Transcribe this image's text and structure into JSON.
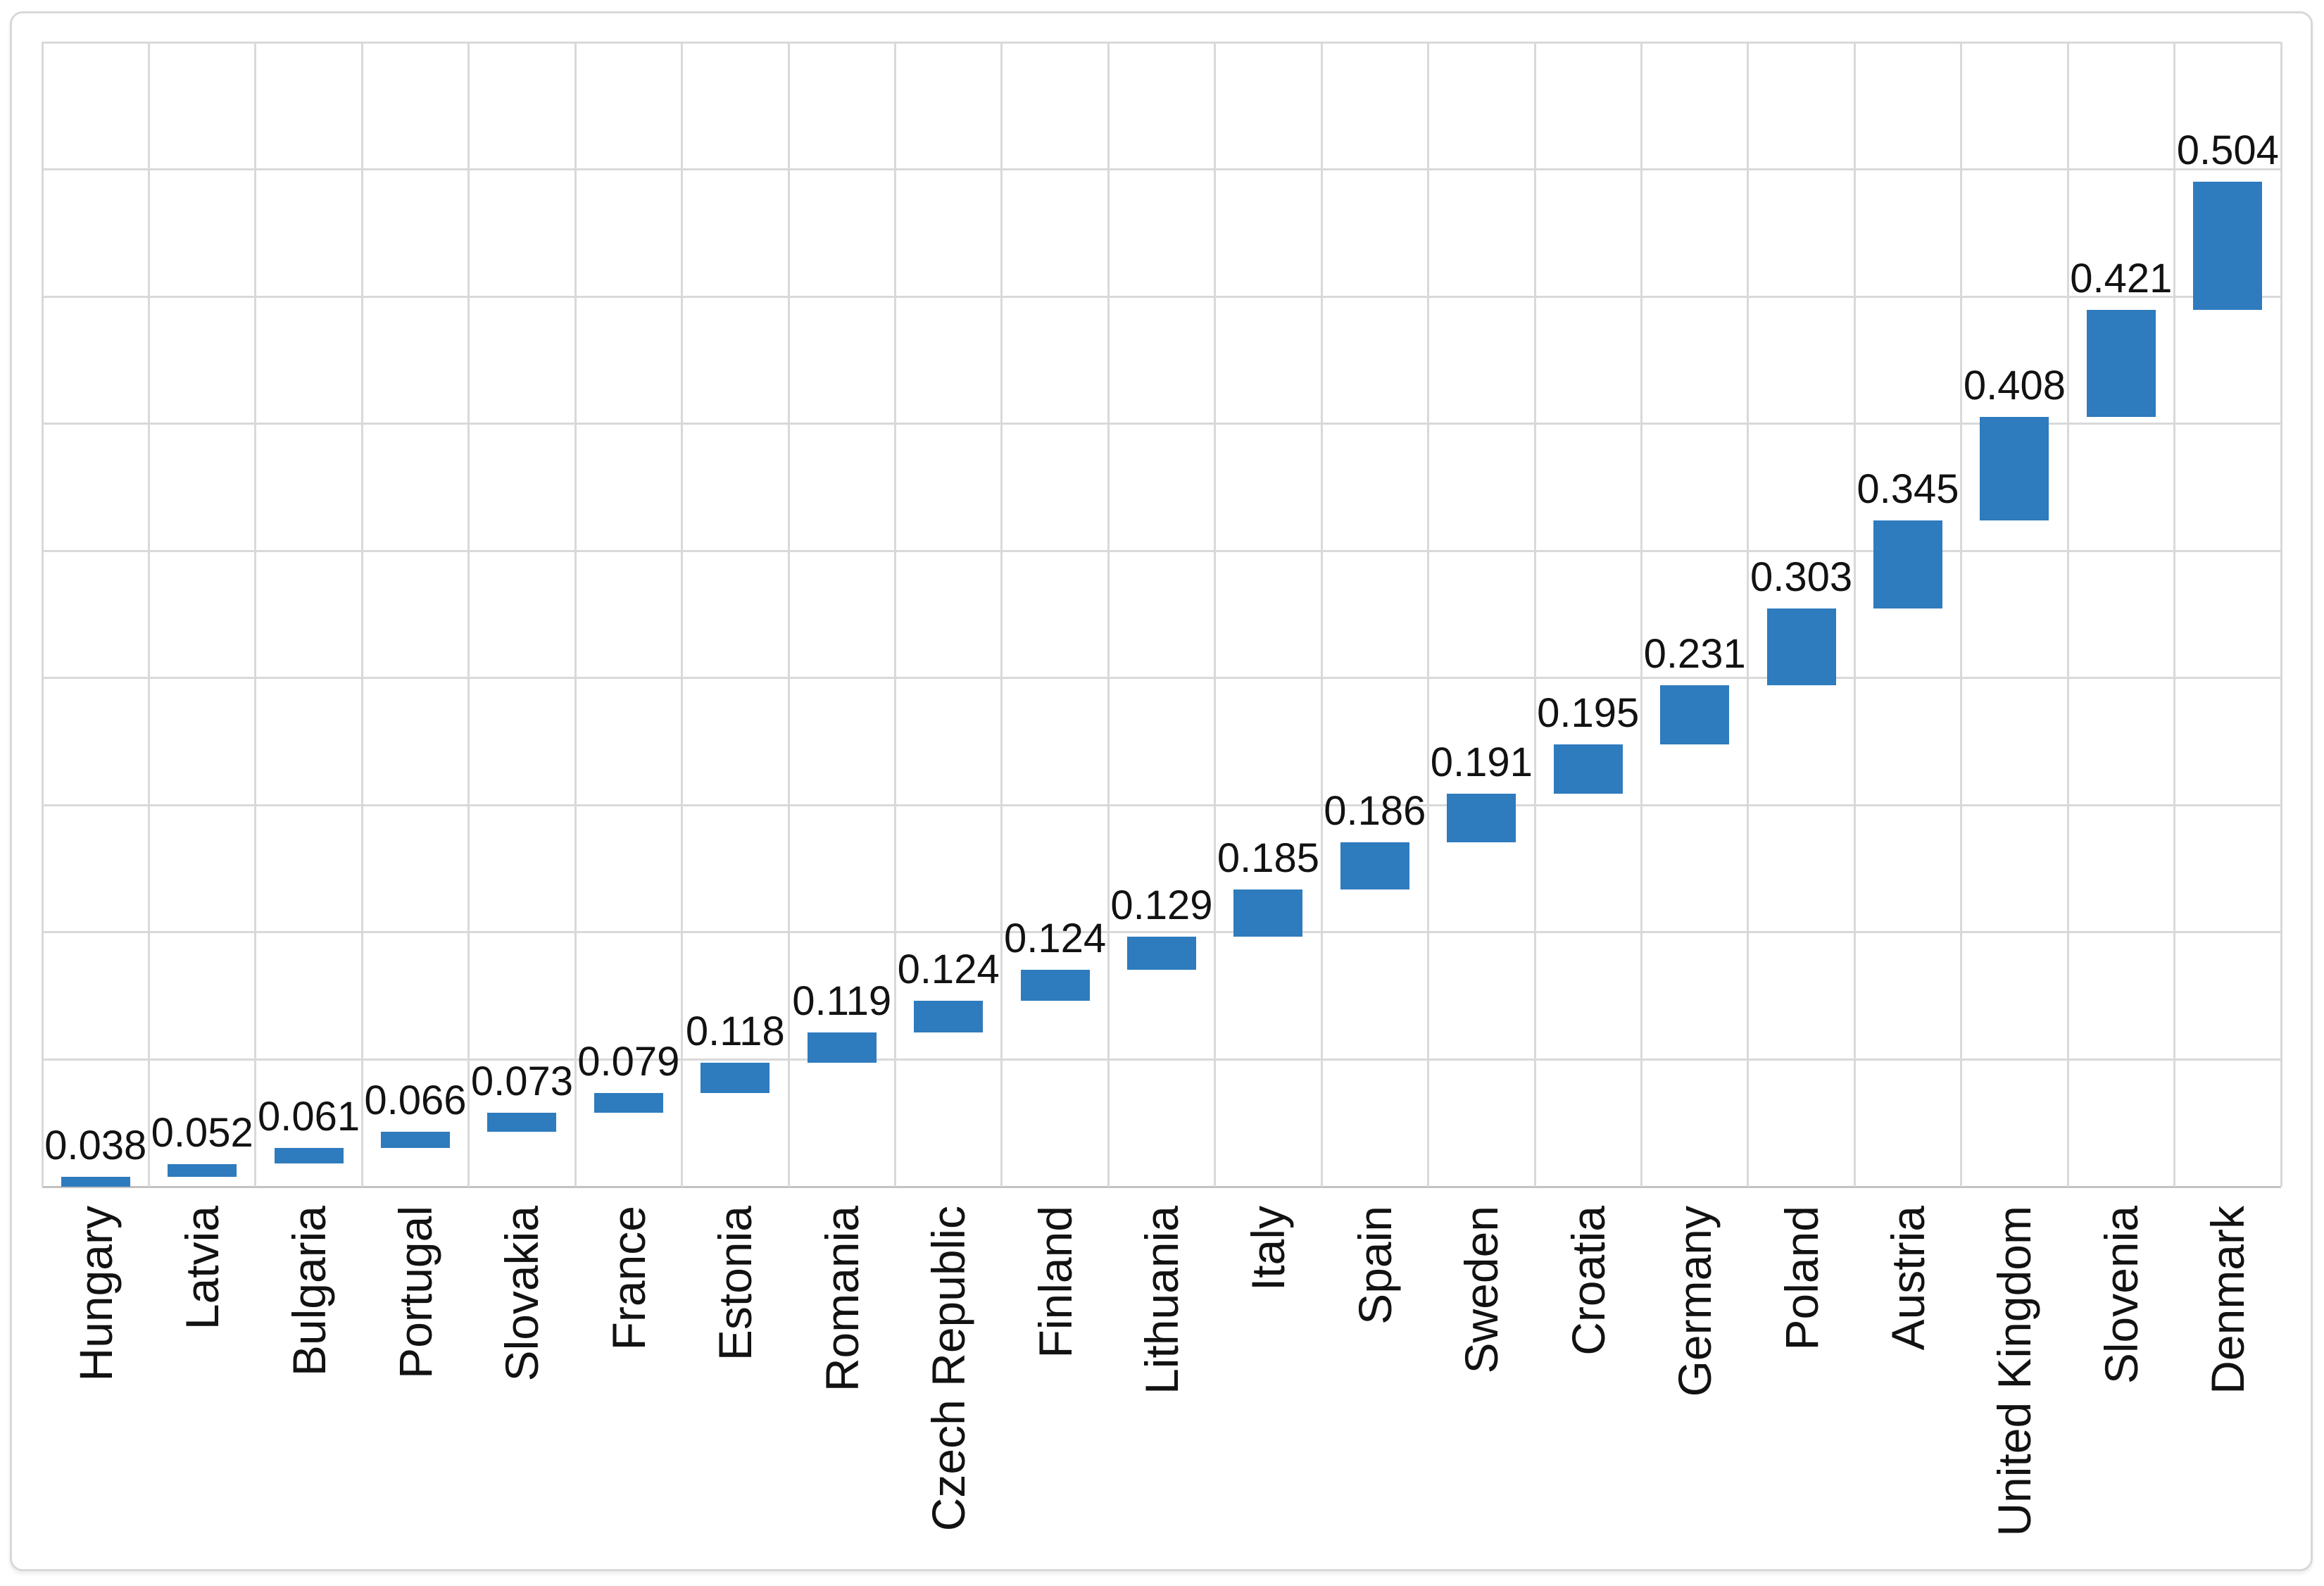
{
  "chart_data": {
    "type": "bar",
    "variant": "waterfall-cumulative-stacked",
    "title": "",
    "xlabel": "",
    "ylabel": "",
    "categories": [
      "Hungary",
      "Latvia",
      "Bulgaria",
      "Portugal",
      "Slovakia",
      "France",
      "Estonia",
      "Romania",
      "Czech Republic",
      "Finland",
      "Lithuania",
      "Italy",
      "Spain",
      "Sweden",
      "Croatia",
      "Germany",
      "Poland",
      "Austria",
      "United Kingdom",
      "Slovenia",
      "Denmark"
    ],
    "values": [
      0.038,
      0.052,
      0.061,
      0.066,
      0.073,
      0.079,
      0.118,
      0.119,
      0.124,
      0.124,
      0.129,
      0.185,
      0.186,
      0.191,
      0.195,
      0.231,
      0.303,
      0.345,
      0.408,
      0.421,
      0.504
    ],
    "data_labels": [
      "0.038",
      "0.052",
      "0.061",
      "0.066",
      "0.073",
      "0.079",
      "0.118",
      "0.119",
      "0.124",
      "0.124",
      "0.129",
      "0.185",
      "0.186",
      "0.191",
      "0.195",
      "0.231",
      "0.303",
      "0.345",
      "0.408",
      "0.421",
      "0.504"
    ],
    "ylim": [
      0,
      4.5
    ],
    "gridline_step": 0.5,
    "grid": true,
    "legend": false,
    "y_tick_labels_visible": false,
    "bar_color": "#2e7bbe",
    "gridline_color": "#d9d9d9",
    "axis_line_color": "#c2c2c2",
    "label_color": "#121212",
    "border_color": "#d8d8d8"
  }
}
